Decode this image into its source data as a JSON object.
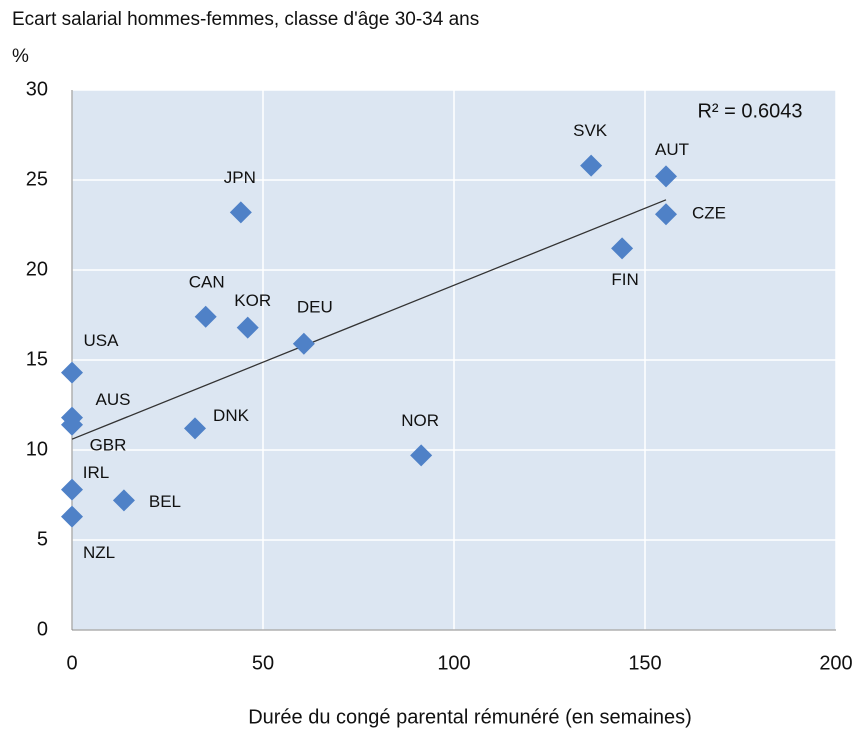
{
  "chart_data": {
    "type": "scatter",
    "title": "Ecart  salarial hommes-femmes, classe d'âge 30-34 ans",
    "ylabel": "%",
    "xlabel": "Durée du congé parental rémunéré (en semaines)",
    "annotation": "R² = 0.6043",
    "labels": [
      "USA",
      "AUS",
      "GBR",
      "IRL",
      "NZL",
      "BEL",
      "DNK",
      "CAN",
      "JPN",
      "KOR",
      "DEU",
      "NOR",
      "SVK",
      "FIN",
      "AUT",
      "CZE"
    ],
    "x": [
      0,
      0,
      0,
      0,
      0,
      13.6,
      32.2,
      35,
      44.2,
      46,
      60.7,
      91.4,
      135.9,
      144,
      155.5,
      155.5
    ],
    "y": [
      14.3,
      11.8,
      11.4,
      7.8,
      6.3,
      7.2,
      11.2,
      17.4,
      23.2,
      16.8,
      15.9,
      9.7,
      25.8,
      21.2,
      25.2,
      23.1
    ],
    "color": "#4f81c7",
    "trendline": {
      "x": [
        0,
        155.5
      ],
      "y": [
        10.6,
        23.9
      ]
    },
    "xlim": [
      0,
      200
    ],
    "xticks": [
      0,
      50,
      100,
      150,
      200
    ],
    "ylim": [
      0,
      30
    ],
    "yticks": [
      0,
      5,
      10,
      15,
      20,
      25,
      30
    ],
    "grid": true
  }
}
